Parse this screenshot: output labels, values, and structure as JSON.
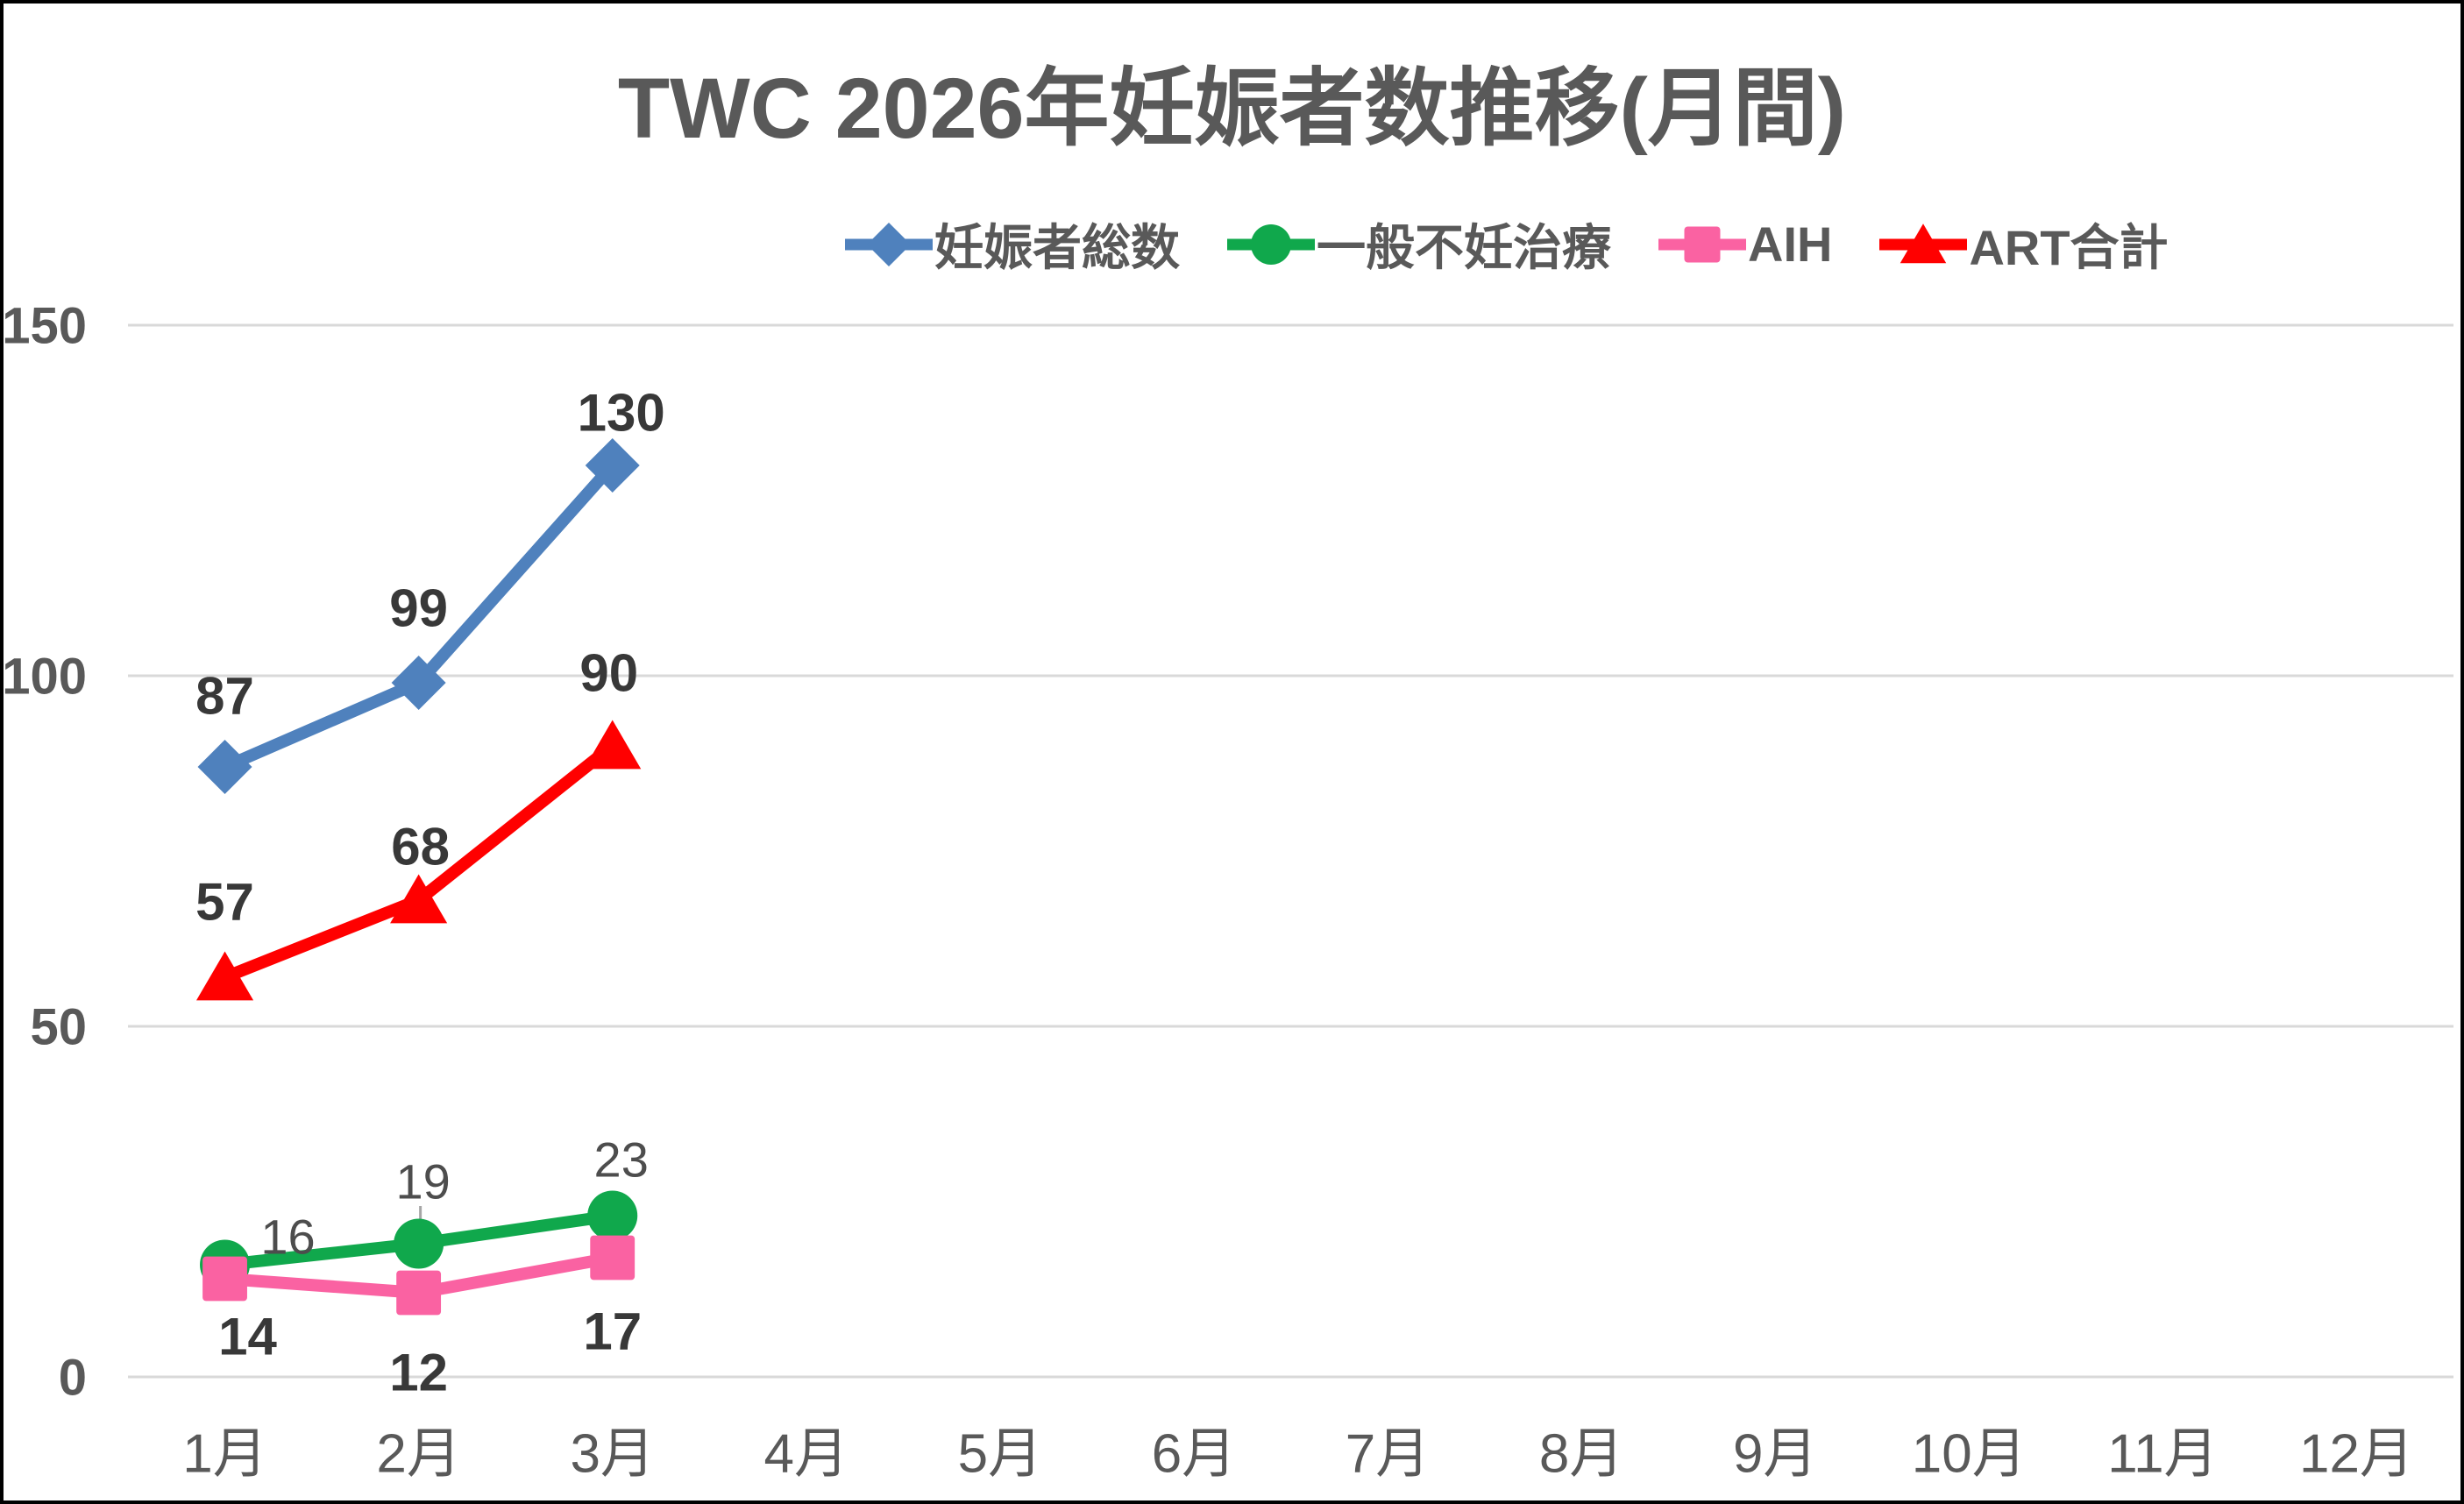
{
  "chart_data": {
    "type": "line",
    "title": "TWC 2026年妊娠者数推移(月間)",
    "categories": [
      "1月",
      "2月",
      "3月",
      "4月",
      "5月",
      "6月",
      "7月",
      "8月",
      "9月",
      "10月",
      "11月",
      "12月"
    ],
    "y_ticks": [
      0,
      50,
      100,
      150
    ],
    "ylim": [
      0,
      150
    ],
    "grid": true,
    "legend_position": "top",
    "colors": {
      "grid_line": "#D9D9D9",
      "axis_text": "#595959",
      "title_text": "#595959",
      "leader_line": "#A6A6A6"
    },
    "series": [
      {
        "name": "妊娠者総数",
        "marker": "diamond",
        "color": "#4F81BD",
        "values": [
          87,
          99,
          130,
          null,
          null,
          null,
          null,
          null,
          null,
          null,
          null,
          null
        ],
        "labels": [
          "87",
          "99",
          "130"
        ],
        "label_bold": true,
        "label_color": "#383838",
        "label_offsets": [
          [
            0,
            -81
          ],
          [
            0,
            -85
          ],
          [
            10,
            -60
          ]
        ],
        "leader_points": []
      },
      {
        "name": "一般不妊治療",
        "marker": "circle",
        "color": "#10A84C",
        "values": [
          16,
          19,
          23,
          null,
          null,
          null,
          null,
          null,
          null,
          null,
          null,
          null
        ],
        "labels": [
          "16",
          "19",
          "23"
        ],
        "label_bold": false,
        "label_color": "#4D4D4D",
        "label_offsets": [
          [
            72,
            -32
          ],
          [
            5,
            -71
          ],
          [
            10,
            -64
          ]
        ],
        "leader_points": [
          1
        ]
      },
      {
        "name": "AIH",
        "marker": "square",
        "color": "#FA62A2",
        "values": [
          14,
          12,
          17,
          null,
          null,
          null,
          null,
          null,
          null,
          null,
          null,
          null
        ],
        "labels": [
          "14",
          "12",
          "17"
        ],
        "label_bold": true,
        "label_color": "#383838",
        "label_offsets": [
          [
            26,
            66
          ],
          [
            0,
            91
          ],
          [
            0,
            84
          ]
        ],
        "leader_points": []
      },
      {
        "name": "ART合計",
        "marker": "triangle",
        "color": "#FF0000",
        "values": [
          57,
          68,
          90,
          null,
          null,
          null,
          null,
          null,
          null,
          null,
          null,
          null
        ],
        "labels": [
          "57",
          "68",
          "90"
        ],
        "label_bold": true,
        "label_color": "#383838",
        "label_offsets": [
          [
            0,
            -86
          ],
          [
            2,
            -61
          ],
          [
            -4,
            -83
          ]
        ],
        "leader_points": []
      }
    ]
  }
}
